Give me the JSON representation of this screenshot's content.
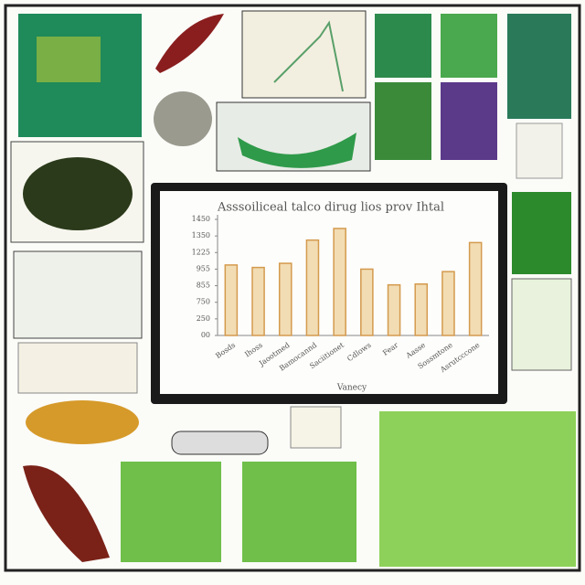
{
  "chart_data": {
    "type": "bar",
    "title": "Asssoiliceal talco dirug lios prov Ihtal",
    "x_label": "Vanecy",
    "categories": [
      "Bosds",
      "Ihoss",
      "Jaootmed",
      "Bamocannd",
      "Saciitionet",
      "Cdlows",
      "Fear",
      "Aasse",
      "Sossmtone",
      "Asrutcccone"
    ],
    "values": [
      4.25,
      4.1,
      4.35,
      5.75,
      6.45,
      4.0,
      3.05,
      3.1,
      3.85,
      5.6
    ],
    "color": "#f2dcb3",
    "edge_color": "#d49a4e",
    "ylim": [
      0,
      7
    ],
    "yticks": [
      {
        "value": 0,
        "label": "00"
      },
      {
        "value": 1,
        "label": "250"
      },
      {
        "value": 2,
        "label": "750"
      },
      {
        "value": 3,
        "label": "855"
      },
      {
        "value": 4,
        "label": "955"
      },
      {
        "value": 5,
        "label": "1225"
      },
      {
        "value": 6,
        "label": "1350"
      },
      {
        "value": 7,
        "label": "1450"
      }
    ],
    "grid": false
  }
}
